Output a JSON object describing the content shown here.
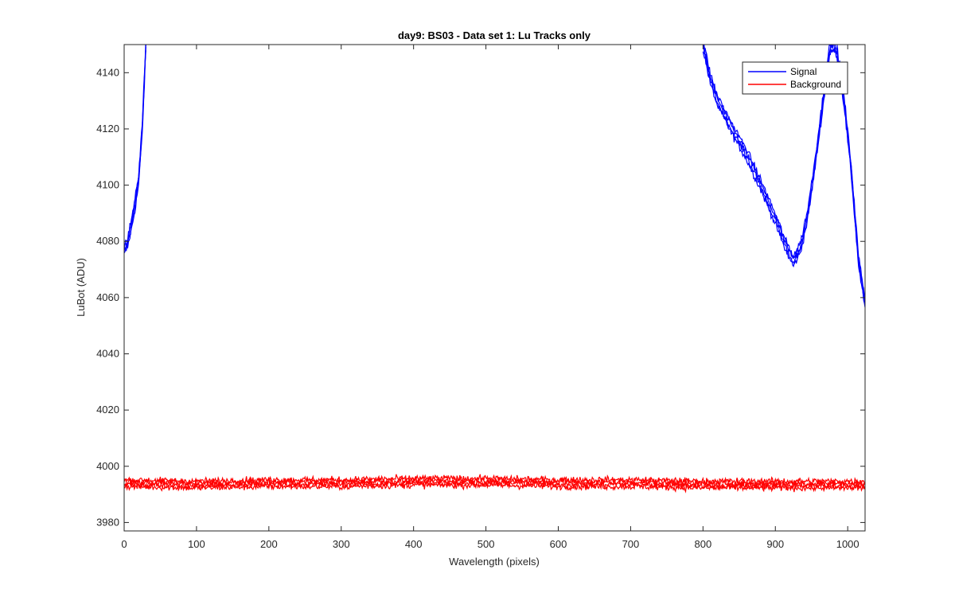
{
  "chart_data": {
    "type": "line",
    "title": "day9: BS03 - Data set 1: Lu Tracks only",
    "xlabel": "Wavelength (pixels)",
    "ylabel": "LuBot (ADU)",
    "xlim": [
      0,
      1024
    ],
    "ylim": [
      3977,
      4150
    ],
    "xticks": [
      0,
      100,
      200,
      300,
      400,
      500,
      600,
      700,
      800,
      900,
      1000
    ],
    "yticks": [
      3980,
      4000,
      4020,
      4040,
      4060,
      4080,
      4100,
      4120,
      4140
    ],
    "grid": false,
    "legend_position": "top-right",
    "series": [
      {
        "name": "Signal",
        "color": "#0000ff",
        "segments": [
          {
            "x": [
              0,
              5,
              10,
              15,
              20,
              25,
              30
            ],
            "y": [
              4077,
              4080,
              4086,
              4093,
              4102,
              4120,
              4150
            ]
          },
          {
            "x": [
              800,
              810,
              820,
              840,
              860,
              880,
              900,
              915,
              925,
              935,
              945,
              955,
              965,
              975,
              980,
              985,
              995,
              1005,
              1015,
              1024
            ],
            "y": [
              4150,
              4138,
              4130,
              4120,
              4111,
              4100,
              4088,
              4078,
              4073,
              4078,
              4090,
              4108,
              4128,
              4148,
              4150,
              4148,
              4130,
              4105,
              4073,
              4058
            ]
          }
        ]
      },
      {
        "name": "Background",
        "color": "#ff0000",
        "segments": [
          {
            "x": [
              0,
              100,
              200,
              300,
              400,
              500,
              600,
              700,
              800,
              900,
              1024
            ],
            "y": [
              3994,
              3993.5,
              3994,
              3994,
              3994.5,
              3994.5,
              3994,
              3994,
              3993.5,
              3993.5,
              3993.5
            ]
          }
        ]
      }
    ]
  }
}
